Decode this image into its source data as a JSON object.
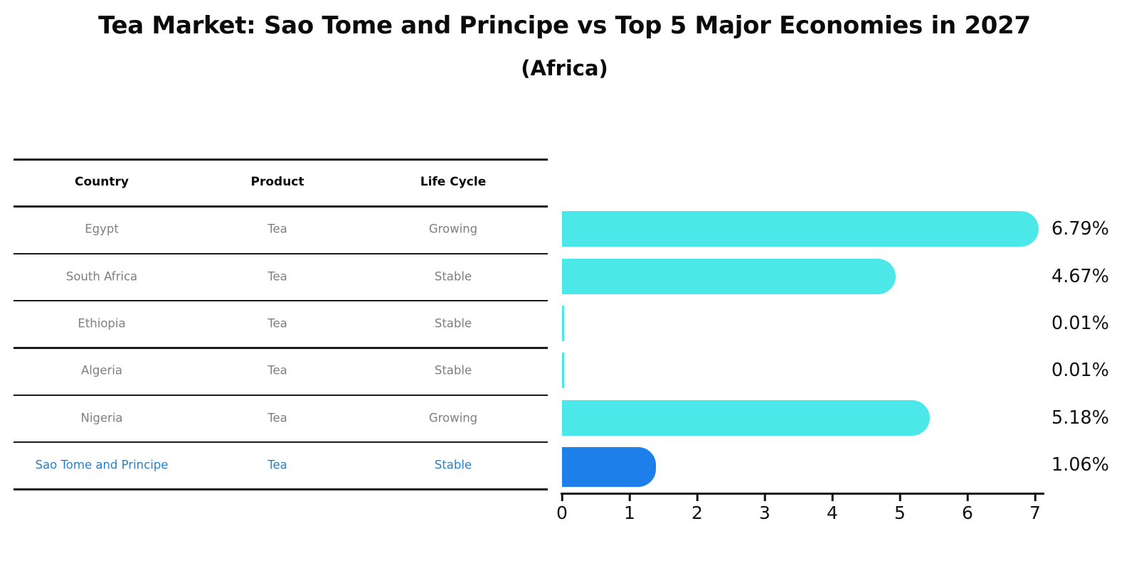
{
  "title": "Tea Market: Sao Tome and Principe vs Top 5 Major Economies in 2027",
  "subtitle": "(Africa)",
  "table": {
    "headers": [
      "Country",
      "Product",
      "Life Cycle"
    ],
    "rows": [
      {
        "country": "Egypt",
        "product": "Tea",
        "life_cycle": "Growing",
        "highlight": false
      },
      {
        "country": "South Africa",
        "product": "Tea",
        "life_cycle": "Stable",
        "highlight": false
      },
      {
        "country": "Ethiopia",
        "product": "Tea",
        "life_cycle": "Stable",
        "highlight": false
      },
      {
        "country": "Algeria",
        "product": "Tea",
        "life_cycle": "Stable",
        "highlight": false
      },
      {
        "country": "Nigeria",
        "product": "Tea",
        "life_cycle": "Growing",
        "highlight": false
      },
      {
        "country": "Sao Tome and Principe",
        "product": "Tea",
        "life_cycle": "Stable",
        "highlight": true
      }
    ]
  },
  "chart_data": {
    "type": "bar",
    "orientation": "horizontal",
    "title": "Tea Market: Sao Tome and Principe vs Top 5 Major Economies in 2027",
    "subtitle": "(Africa)",
    "categories": [
      "Egypt",
      "South Africa",
      "Ethiopia",
      "Algeria",
      "Nigeria",
      "Sao Tome and Principe"
    ],
    "values": [
      6.79,
      4.67,
      0.01,
      0.01,
      5.18,
      1.06
    ],
    "value_labels": [
      "6.79%",
      "4.67%",
      "0.01%",
      "0.01%",
      "5.18%",
      "1.06%"
    ],
    "xlabel": "",
    "ylabel": "",
    "xlim": [
      0,
      7
    ],
    "x_ticks": [
      0,
      1,
      2,
      3,
      4,
      5,
      6,
      7
    ],
    "grid": false,
    "legend": false,
    "highlight_index": 5,
    "colors": {
      "default_bar": "#4BE7E9",
      "highlight_bar": "#1E7FEB",
      "highlight_text": "#2C7FC4",
      "row_text": "#7F7F7F",
      "header_text": "#0B0B0B",
      "value_label": "#111111",
      "axis": "#111111",
      "table_line": "#1A1A1A"
    }
  }
}
